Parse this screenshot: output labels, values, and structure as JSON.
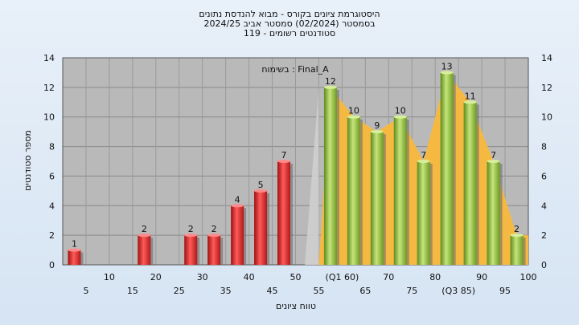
{
  "header": {
    "line1": "היסטוגרמת ציונים בקורס - מבוא להנדסת נתונים",
    "line2": "בסמסטר  (02/2024)  סמסטר אביב 2024/25",
    "line3": "סטודנטים רשומים - 119"
  },
  "chart_data": {
    "type": "bar",
    "title": "היסטוגרמת ציונים בקורס - מבוא להנדסת נתונים",
    "annotation": "בשימוח : Final_A",
    "xlabel": "טווח ציונים",
    "ylabel": "מספר סטודנטים",
    "ylim": [
      0,
      14
    ],
    "yticks": [
      0,
      2,
      4,
      6,
      8,
      10,
      12,
      14
    ],
    "grid": true,
    "x_tick_labels_upper": [
      "10",
      "20",
      "30",
      "40",
      "50",
      "(Q1 60)",
      "70",
      "80",
      "90",
      "100"
    ],
    "x_tick_labels_lower": [
      "5",
      "15",
      "25",
      "35",
      "45",
      "55",
      "65",
      "75",
      "(Q3 85)",
      "95"
    ],
    "categories": [
      "5",
      "10",
      "15",
      "20",
      "25",
      "30",
      "35",
      "40",
      "45",
      "50",
      "55",
      "60",
      "65",
      "70",
      "75",
      "80",
      "85",
      "90",
      "95",
      "100"
    ],
    "values": [
      1,
      0,
      0,
      2,
      0,
      2,
      2,
      4,
      5,
      7,
      0,
      12,
      10,
      9,
      10,
      7,
      13,
      11,
      7,
      2
    ],
    "data_labels": [
      "1",
      "",
      "",
      "2",
      "",
      "2",
      "2",
      "4",
      "5",
      "7",
      "",
      "12",
      "10",
      "9",
      "10",
      "7",
      "13",
      "11",
      "7",
      "2"
    ],
    "fail_color": "#e02a2a",
    "pass_color": "#93c23c",
    "area_color": "#f5b942",
    "plot_background": "#b9b9b9"
  }
}
